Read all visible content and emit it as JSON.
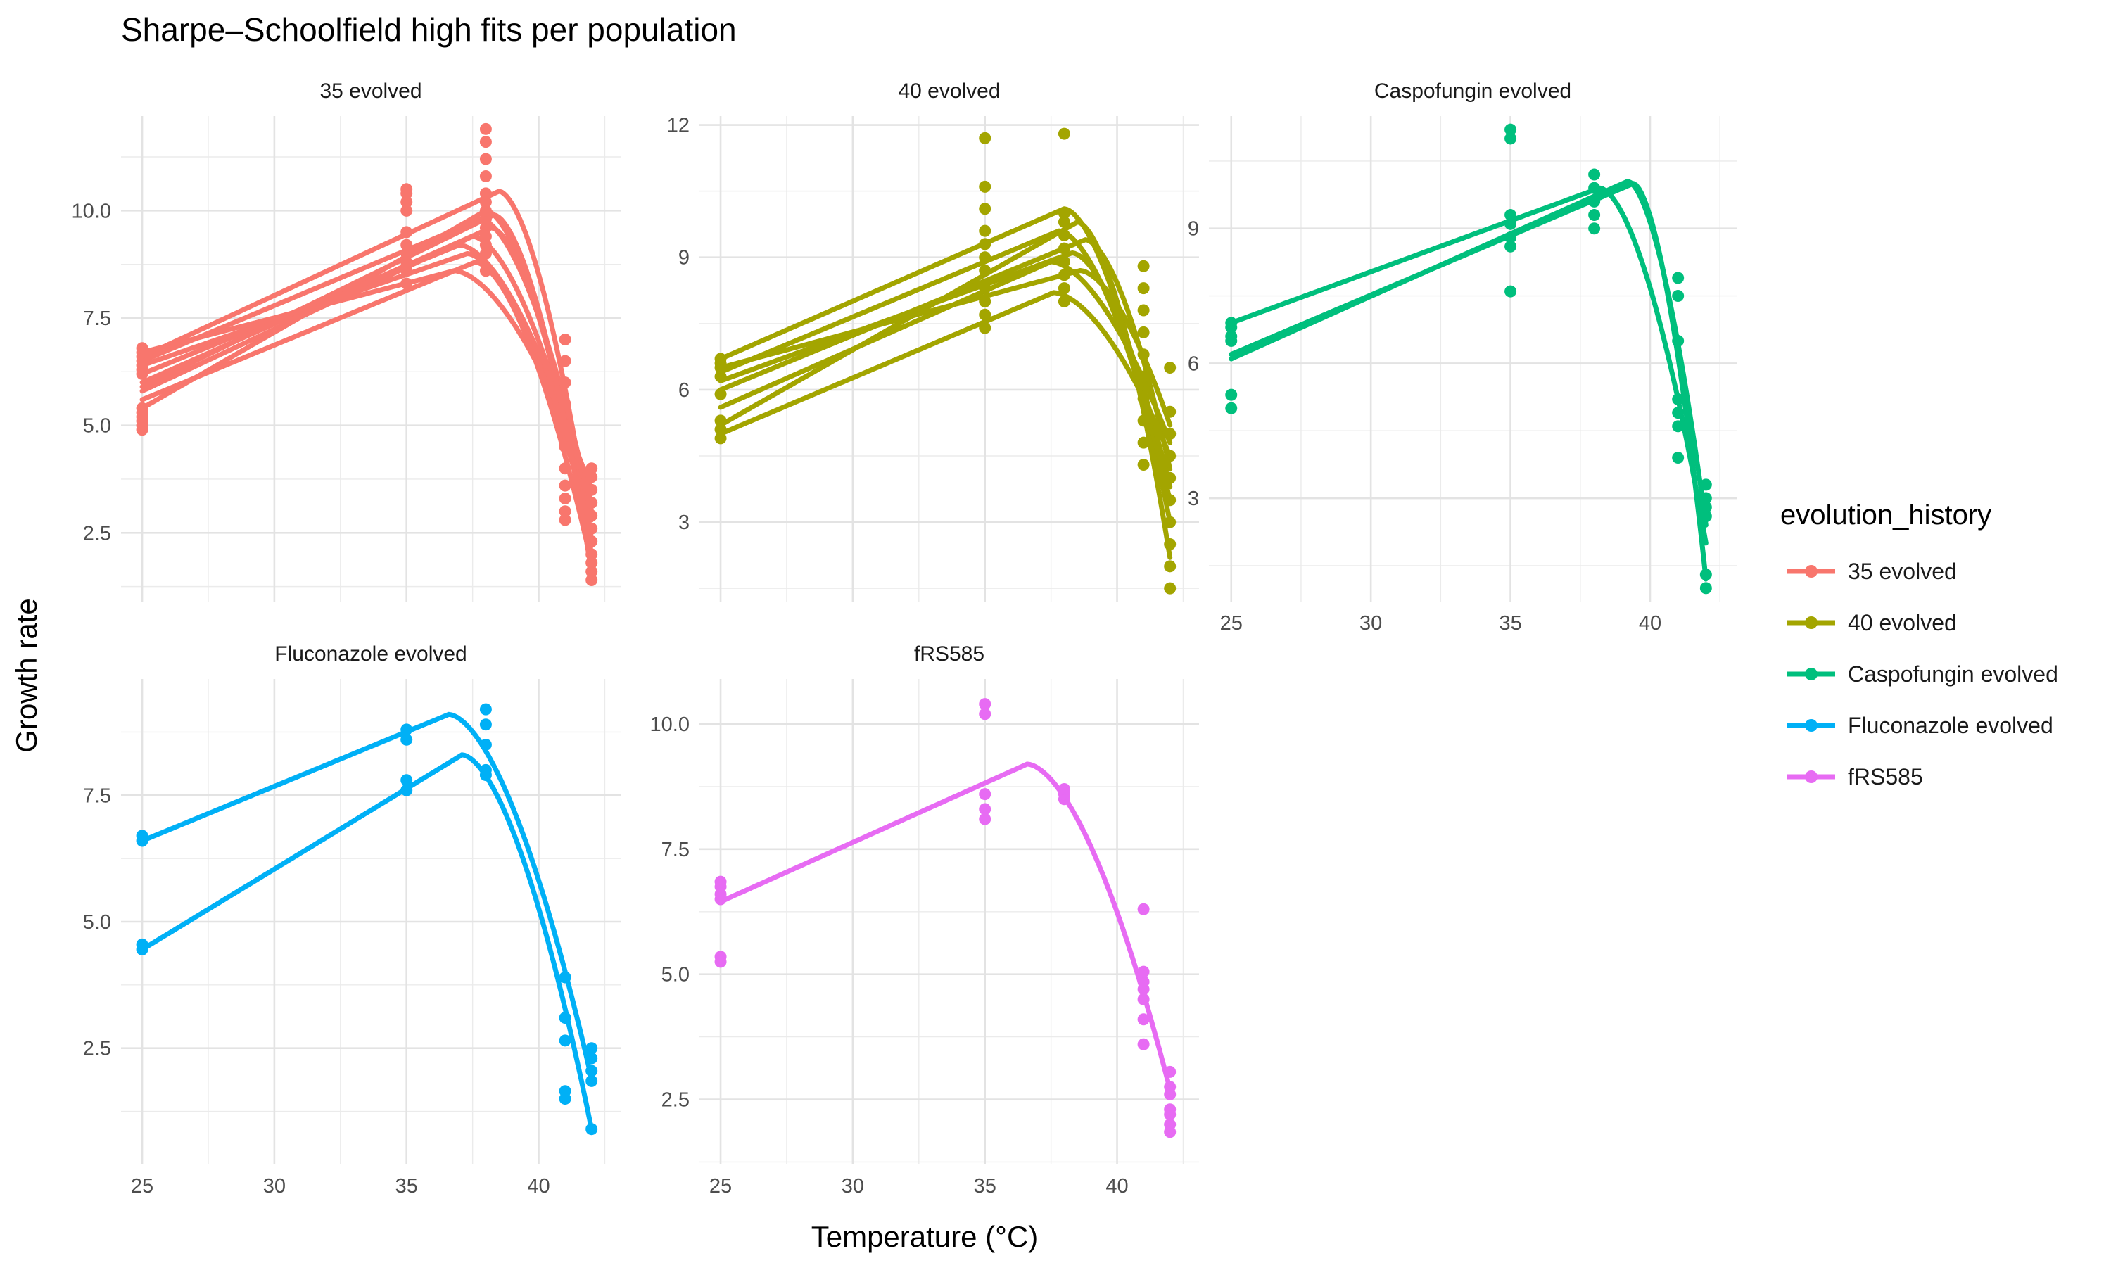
{
  "chart_data": {
    "type": "line",
    "title": "Sharpe–Schoolfield high fits per population",
    "xlabel": "Temperature (°C)",
    "ylabel": "Growth rate",
    "legend": {
      "title": "evolution_history",
      "position": "right",
      "entries": [
        {
          "label": "35 evolved",
          "color": "#F8766D"
        },
        {
          "label": "40 evolved",
          "color": "#A3A500"
        },
        {
          "label": "Caspofungin evolved",
          "color": "#00BF7D"
        },
        {
          "label": "Fluconazole evolved",
          "color": "#00B0F6"
        },
        {
          "label": "fRS585",
          "color": "#E76BF3"
        }
      ]
    },
    "grid": true,
    "shared_x_ticks": [
      25,
      30,
      35,
      40
    ],
    "panels": [
      {
        "label": "35 evolved",
        "color": "#F8766D",
        "xlim": [
          24.2,
          43.1
        ],
        "ylim": [
          0.9,
          12.2
        ],
        "yticks": [
          2.5,
          5.0,
          7.5,
          10.0
        ],
        "ytick_labels": [
          "2.5",
          "5.0",
          "7.5",
          "10.0"
        ],
        "points": {
          "25": [
            4.9,
            5.0,
            5.1,
            5.2,
            5.3,
            5.4,
            6.2,
            6.3,
            6.4,
            6.5,
            6.6,
            6.7,
            6.8
          ],
          "35": [
            8.3,
            8.6,
            8.8,
            9.0,
            9.2,
            9.5,
            10.0,
            10.2,
            10.4,
            10.5
          ],
          "38": [
            8.6,
            9.0,
            9.2,
            9.4,
            9.6,
            9.8,
            10.0,
            10.2,
            10.4,
            10.8,
            11.2,
            11.6,
            11.9
          ],
          "41": [
            2.8,
            3.0,
            3.3,
            3.6,
            4.0,
            4.5,
            5.0,
            5.5,
            6.0,
            6.5,
            7.0
          ],
          "42": [
            1.4,
            1.6,
            1.8,
            2.0,
            2.3,
            2.6,
            2.9,
            3.2,
            3.5,
            3.8,
            4.0
          ]
        },
        "curves": [
          {
            "y25": 6.6,
            "peak": 10.45,
            "topt": 38.5,
            "tmax": 42.0,
            "drop": 2.3
          },
          {
            "y25": 5.4,
            "peak": 10.0,
            "topt": 38.0,
            "tmax": 42.0,
            "drop": 2.0
          },
          {
            "y25": 6.5,
            "peak": 9.8,
            "topt": 37.8,
            "tmax": 42.0,
            "drop": 3.0
          },
          {
            "y25": 6.0,
            "peak": 9.6,
            "topt": 38.2,
            "tmax": 42.0,
            "drop": 2.2
          },
          {
            "y25": 5.8,
            "peak": 9.4,
            "topt": 37.5,
            "tmax": 42.0,
            "drop": 2.8
          },
          {
            "y25": 6.2,
            "peak": 9.2,
            "topt": 37.0,
            "tmax": 42.0,
            "drop": 3.2
          },
          {
            "y25": 6.4,
            "peak": 9.0,
            "topt": 37.3,
            "tmax": 42.0,
            "drop": 2.5
          },
          {
            "y25": 5.6,
            "peak": 8.8,
            "topt": 37.6,
            "tmax": 42.0,
            "drop": 1.8
          },
          {
            "y25": 6.7,
            "peak": 8.6,
            "topt": 36.8,
            "tmax": 42.0,
            "drop": 3.5
          },
          {
            "y25": 5.9,
            "peak": 9.9,
            "topt": 38.3,
            "tmax": 42.0,
            "drop": 1.6
          }
        ]
      },
      {
        "label": "40 evolved",
        "color": "#A3A500",
        "xlim": [
          24.2,
          43.1
        ],
        "ylim": [
          1.2,
          12.2
        ],
        "yticks": [
          3,
          6,
          9,
          12
        ],
        "ytick_labels": [
          "3",
          "6",
          "9",
          "12"
        ],
        "points": {
          "25": [
            4.9,
            5.1,
            5.3,
            5.9,
            6.3,
            6.5,
            6.6,
            6.7
          ],
          "35": [
            7.4,
            7.7,
            8.0,
            8.3,
            8.7,
            9.0,
            9.3,
            9.6,
            10.1,
            10.6,
            11.7
          ],
          "38": [
            8.0,
            8.3,
            8.6,
            8.9,
            9.2,
            9.5,
            9.8,
            10.0,
            11.8
          ],
          "41": [
            4.3,
            4.8,
            5.3,
            5.8,
            6.3,
            6.8,
            7.3,
            7.8,
            8.3,
            8.8
          ],
          "42": [
            1.5,
            2.0,
            2.5,
            3.0,
            3.5,
            4.0,
            4.5,
            5.0,
            5.5,
            6.5
          ]
        },
        "curves": [
          {
            "y25": 6.7,
            "peak": 10.1,
            "topt": 38.0,
            "tmax": 42.0,
            "drop": 3.0
          },
          {
            "y25": 5.2,
            "peak": 9.8,
            "topt": 38.5,
            "tmax": 42.0,
            "drop": 2.2
          },
          {
            "y25": 6.4,
            "peak": 9.6,
            "topt": 37.8,
            "tmax": 42.0,
            "drop": 3.5
          },
          {
            "y25": 6.0,
            "peak": 9.4,
            "topt": 38.8,
            "tmax": 42.0,
            "drop": 4.2
          },
          {
            "y25": 6.2,
            "peak": 9.1,
            "topt": 38.3,
            "tmax": 42.0,
            "drop": 3.8
          },
          {
            "y25": 5.6,
            "peak": 8.9,
            "topt": 37.5,
            "tmax": 42.0,
            "drop": 4.8
          },
          {
            "y25": 6.5,
            "peak": 8.7,
            "topt": 38.6,
            "tmax": 42.0,
            "drop": 5.2
          },
          {
            "y25": 5.0,
            "peak": 8.2,
            "topt": 37.6,
            "tmax": 42.0,
            "drop": 4.5
          }
        ]
      },
      {
        "label": "Caspofungin evolved",
        "color": "#00BF7D",
        "xlim": [
          24.2,
          43.1
        ],
        "ylim": [
          0.7,
          11.5
        ],
        "yticks": [
          3,
          6,
          9
        ],
        "ytick_labels": [
          "3",
          "6",
          "9"
        ],
        "points": {
          "25": [
            5.0,
            5.3,
            6.5,
            6.6,
            6.8,
            6.9
          ],
          "35": [
            7.6,
            8.6,
            8.8,
            9.1,
            9.3,
            11.0,
            11.2
          ],
          "38": [
            9.0,
            9.3,
            9.6,
            9.9,
            10.2
          ],
          "41": [
            3.9,
            4.6,
            4.9,
            5.2,
            6.5,
            7.5,
            7.9
          ],
          "42": [
            1.0,
            1.3,
            2.6,
            2.8,
            3.0,
            3.3
          ]
        },
        "curves": [
          {
            "y25": 6.9,
            "peak": 9.9,
            "topt": 38.2,
            "tmax": 42.0,
            "drop": 2.0
          },
          {
            "y25": 6.1,
            "peak": 10.05,
            "topt": 39.2,
            "tmax": 42.0,
            "drop": 2.4
          },
          {
            "y25": 6.2,
            "peak": 10.0,
            "topt": 39.4,
            "tmax": 42.0,
            "drop": 1.2
          }
        ]
      },
      {
        "label": "Fluconazole evolved",
        "color": "#00B0F6",
        "xlim": [
          24.2,
          43.1
        ],
        "ylim": [
          0.2,
          9.8
        ],
        "yticks": [
          2.5,
          5.0,
          7.5
        ],
        "ytick_labels": [
          "2.5",
          "5.0",
          "7.5"
        ],
        "points": {
          "25": [
            4.45,
            4.55,
            6.6,
            6.7
          ],
          "35": [
            7.6,
            7.8,
            8.6,
            8.8
          ],
          "38": [
            7.9,
            8.0,
            8.5,
            8.9,
            9.2
          ],
          "41": [
            1.5,
            1.65,
            2.65,
            3.1,
            3.9
          ],
          "42": [
            0.9,
            1.85,
            2.05,
            2.3,
            2.5
          ]
        },
        "curves": [
          {
            "y25": 6.6,
            "peak": 9.1,
            "topt": 36.6,
            "tmax": 42.0,
            "drop": 1.9
          },
          {
            "y25": 4.45,
            "peak": 8.3,
            "topt": 37.1,
            "tmax": 42.0,
            "drop": 0.9
          }
        ]
      },
      {
        "label": "fRS585",
        "color": "#E76BF3",
        "xlim": [
          24.2,
          43.1
        ],
        "ylim": [
          1.2,
          10.9
        ],
        "yticks": [
          2.5,
          5.0,
          7.5,
          10.0
        ],
        "ytick_labels": [
          "2.5",
          "5.0",
          "7.5",
          "10.0"
        ],
        "points": {
          "25": [
            5.25,
            5.35,
            6.5,
            6.6,
            6.75,
            6.85
          ],
          "35": [
            8.1,
            8.3,
            8.6,
            10.2,
            10.4
          ],
          "38": [
            8.5,
            8.6,
            8.7
          ],
          "41": [
            3.6,
            4.1,
            4.5,
            4.7,
            4.85,
            5.05,
            6.3
          ],
          "42": [
            1.85,
            2.0,
            2.2,
            2.3,
            2.6,
            2.75,
            3.05
          ]
        },
        "curves": [
          {
            "y25": 6.45,
            "peak": 9.2,
            "topt": 36.6,
            "tmax": 42.0,
            "drop": 2.7
          }
        ]
      }
    ]
  }
}
